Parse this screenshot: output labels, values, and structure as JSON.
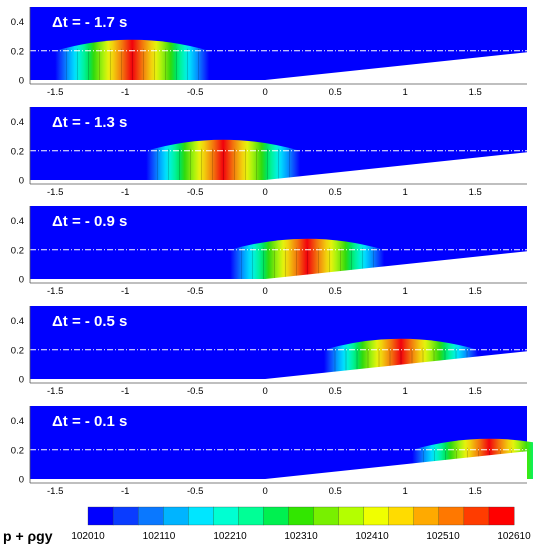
{
  "chart_data": {
    "type": "heatmap",
    "panels": [
      {
        "title": "Δt = - 1.7 s",
        "wave_crest_x": -0.95
      },
      {
        "title": "Δt = - 1.3 s",
        "wave_crest_x": -0.3
      },
      {
        "title": "Δt = - 0.9 s",
        "wave_crest_x": 0.3
      },
      {
        "title": "Δt = - 0.5 s",
        "wave_crest_x": 0.97
      },
      {
        "title": "Δt = - 0.1 s",
        "wave_crest_x": 1.6
      }
    ],
    "x_ticks": [
      "-1.5",
      "-1",
      "-0.5",
      "0",
      "0.5",
      "1",
      "1.5"
    ],
    "y_ticks": [
      "0",
      "0.2",
      "0.4"
    ],
    "xlim": [
      -1.68,
      1.87
    ],
    "ylim": [
      0,
      0.5
    ],
    "still_water_level": 0.2,
    "beach_slope_start_x": 0,
    "colorbar": {
      "label": "p + ρgy",
      "tick_labels": [
        "102010",
        "102110",
        "102210",
        "102310",
        "102410",
        "102510",
        "102610"
      ],
      "range": [
        102010,
        102610
      ],
      "colors": [
        "#0000ff",
        "#0a3cff",
        "#0a78ff",
        "#00b4ff",
        "#00e6ff",
        "#00ffd2",
        "#00ff96",
        "#00f050",
        "#32e600",
        "#78f000",
        "#b4ff00",
        "#f0ff00",
        "#ffdc00",
        "#ffaa00",
        "#ff7800",
        "#ff3c00",
        "#ff0000"
      ]
    }
  }
}
